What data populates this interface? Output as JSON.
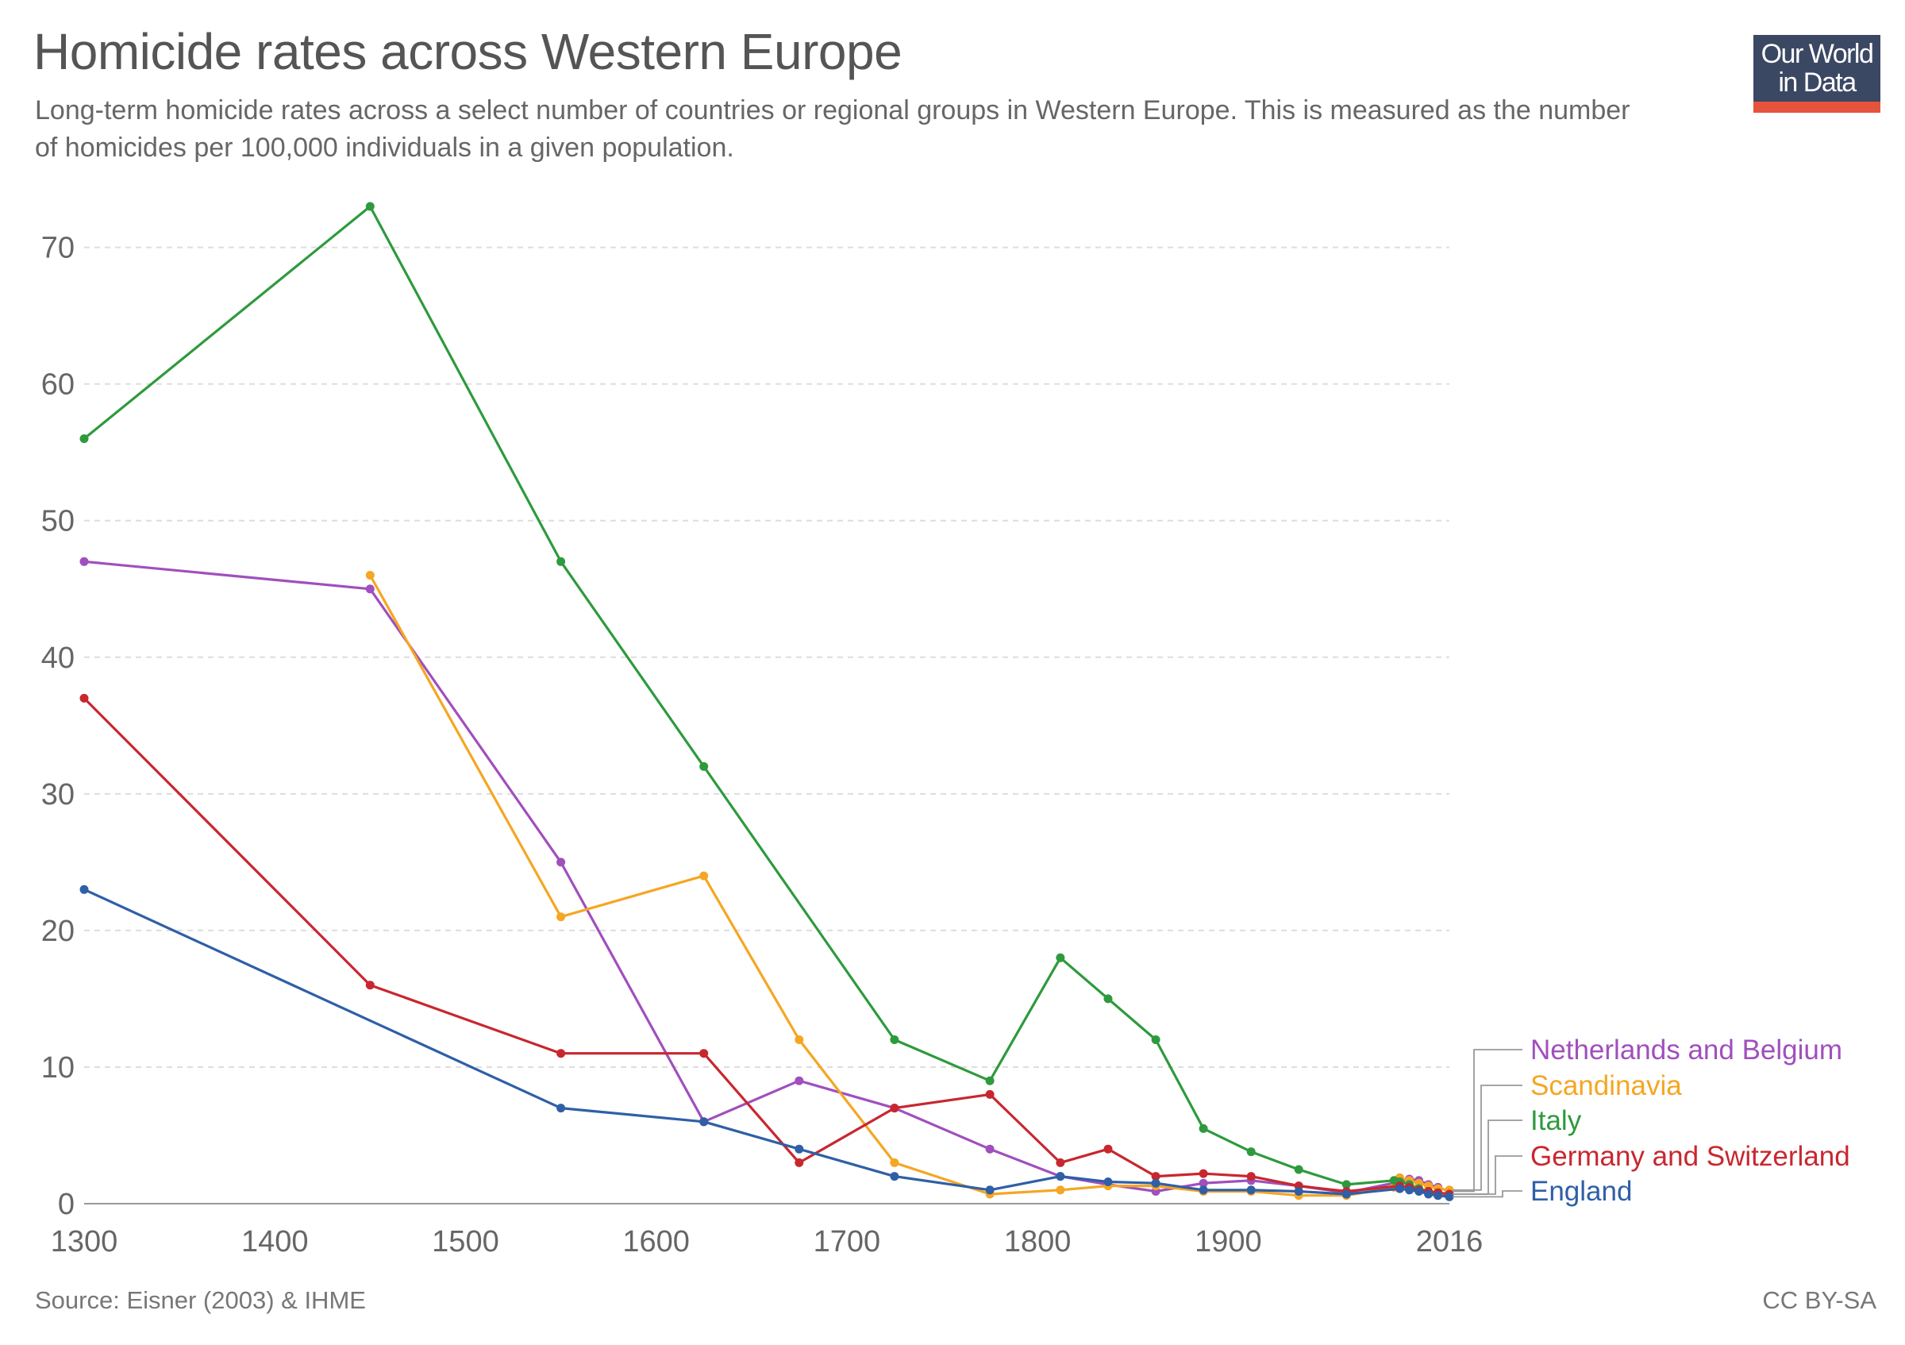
{
  "header": {
    "title": "Homicide rates across Western Europe",
    "subtitle": "Long-term homicide rates across a select number of countries or regional groups in Western Europe. This is measured as the number of homicides per 100,000 individuals in a given population."
  },
  "logo": {
    "line1": "Our World",
    "line2": "in Data"
  },
  "footer": {
    "source": "Source: Eisner (2003) & IHME",
    "license": "CC BY-SA"
  },
  "chart_data": {
    "type": "line",
    "title": "Homicide rates across Western Europe",
    "xlabel": "",
    "ylabel": "",
    "xlim": [
      1300,
      2016
    ],
    "ylim": [
      0,
      73
    ],
    "x_ticks": [
      1300,
      1400,
      1500,
      1600,
      1700,
      1800,
      1900,
      2016
    ],
    "y_ticks": [
      0,
      10,
      20,
      30,
      40,
      50,
      60,
      70
    ],
    "grid": "horizontal dashed",
    "legend_position": "right, end-of-line labels",
    "series": [
      {
        "name": "Netherlands and Belgium",
        "color": "#a04fbd",
        "points": [
          [
            1300,
            47
          ],
          [
            1450,
            45
          ],
          [
            1550,
            25
          ],
          [
            1625,
            6
          ],
          [
            1675,
            9
          ],
          [
            1725,
            7
          ],
          [
            1775,
            4
          ],
          [
            1812,
            2
          ],
          [
            1837,
            1.4
          ],
          [
            1862,
            0.9
          ],
          [
            1887,
            1.5
          ],
          [
            1912,
            1.7
          ],
          [
            1937,
            1.3
          ],
          [
            1962,
            0.8
          ],
          [
            1990,
            1.6
          ],
          [
            1995,
            1.8
          ],
          [
            2000,
            1.7
          ],
          [
            2005,
            1.4
          ],
          [
            2010,
            1.2
          ],
          [
            2016,
            0.9
          ]
        ]
      },
      {
        "name": "Scandinavia",
        "color": "#f5a623",
        "points": [
          [
            1450,
            46
          ],
          [
            1550,
            21
          ],
          [
            1625,
            24
          ],
          [
            1675,
            12
          ],
          [
            1725,
            3
          ],
          [
            1775,
            0.7
          ],
          [
            1812,
            1
          ],
          [
            1837,
            1.3
          ],
          [
            1862,
            1.3
          ],
          [
            1887,
            0.9
          ],
          [
            1912,
            0.9
          ],
          [
            1937,
            0.6
          ],
          [
            1962,
            0.6
          ],
          [
            1987,
            1.2
          ],
          [
            1990,
            1.9
          ],
          [
            1995,
            1.7
          ],
          [
            2000,
            1.5
          ],
          [
            2005,
            1.3
          ],
          [
            2010,
            1.1
          ],
          [
            2016,
            1.0
          ]
        ]
      },
      {
        "name": "Italy",
        "color": "#2e9a3d",
        "points": [
          [
            1300,
            56
          ],
          [
            1450,
            73
          ],
          [
            1550,
            47
          ],
          [
            1625,
            32
          ],
          [
            1725,
            12
          ],
          [
            1775,
            9
          ],
          [
            1812,
            18
          ],
          [
            1837,
            15
          ],
          [
            1862,
            12
          ],
          [
            1887,
            5.5
          ],
          [
            1912,
            3.8
          ],
          [
            1937,
            2.5
          ],
          [
            1962,
            1.4
          ],
          [
            1987,
            1.7
          ],
          [
            1990,
            1.6
          ],
          [
            1995,
            1.4
          ],
          [
            2000,
            1.1
          ],
          [
            2005,
            0.9
          ],
          [
            2010,
            0.8
          ],
          [
            2016,
            0.7
          ]
        ]
      },
      {
        "name": "Germany and Switzerland",
        "color": "#c8272f",
        "points": [
          [
            1300,
            37
          ],
          [
            1450,
            16
          ],
          [
            1550,
            11
          ],
          [
            1625,
            11
          ],
          [
            1675,
            3
          ],
          [
            1725,
            7
          ],
          [
            1775,
            8
          ],
          [
            1812,
            3
          ],
          [
            1837,
            4
          ],
          [
            1862,
            2
          ],
          [
            1887,
            2.2
          ],
          [
            1912,
            2
          ],
          [
            1937,
            1.3
          ],
          [
            1962,
            0.9
          ],
          [
            1990,
            1.3
          ],
          [
            1995,
            1.2
          ],
          [
            2000,
            1.0
          ],
          [
            2005,
            0.9
          ],
          [
            2010,
            0.8
          ],
          [
            2016,
            0.7
          ]
        ]
      },
      {
        "name": "England",
        "color": "#2f5fa7",
        "points": [
          [
            1300,
            23
          ],
          [
            1550,
            7
          ],
          [
            1625,
            6
          ],
          [
            1675,
            4
          ],
          [
            1725,
            2
          ],
          [
            1775,
            1
          ],
          [
            1812,
            2
          ],
          [
            1837,
            1.6
          ],
          [
            1862,
            1.5
          ],
          [
            1887,
            1.0
          ],
          [
            1912,
            1.0
          ],
          [
            1937,
            0.9
          ],
          [
            1962,
            0.7
          ],
          [
            1990,
            1.1
          ],
          [
            1995,
            1.0
          ],
          [
            2000,
            0.9
          ],
          [
            2005,
            0.7
          ],
          [
            2010,
            0.6
          ],
          [
            2016,
            0.5
          ]
        ]
      }
    ]
  }
}
